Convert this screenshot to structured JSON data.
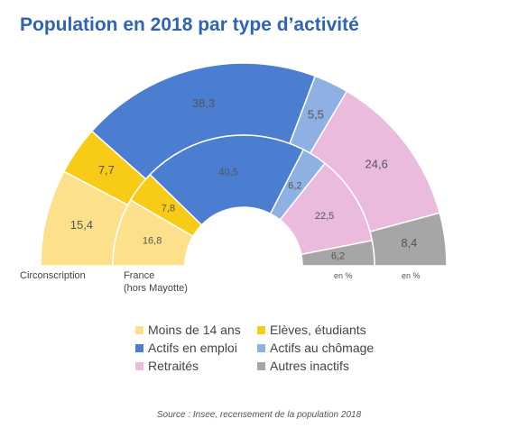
{
  "chart_data": {
    "type": "half-donut",
    "title": "Population en 2018 par type d’activité",
    "source": "Source : Insee, recensement de la population 2018",
    "categories": [
      "Moins de 14 ans",
      "Elèves, étudiants",
      "Actifs en emploi",
      "Actifs au chômage",
      "Retraités",
      "Autres inactifs"
    ],
    "colors": [
      "#fde08c",
      "#f8cb16",
      "#4b7dd1",
      "#8eb0e2",
      "#ebbbdd",
      "#a6a6a6"
    ],
    "series": [
      {
        "name": "Circonscription",
        "unit": "en %",
        "values": [
          15.4,
          7.7,
          38.3,
          5.5,
          24.6,
          8.4
        ],
        "value_labels": [
          "15,4",
          "7,7",
          "38,3",
          "5,5",
          "24,6",
          "8,4"
        ]
      },
      {
        "name": "France\n(hors Mayotte)",
        "unit": "en %",
        "values": [
          16.8,
          7.8,
          40.5,
          6.2,
          22.5,
          6.2
        ],
        "value_labels": [
          "16,8",
          "7,8",
          "40,5",
          "6,2",
          "22,5",
          "6,2"
        ]
      }
    ]
  }
}
